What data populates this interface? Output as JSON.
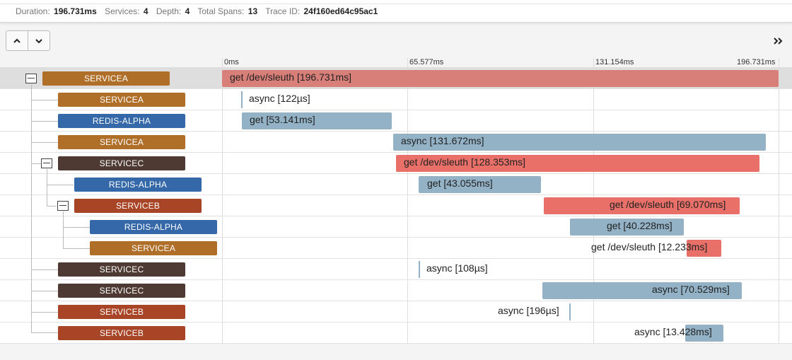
{
  "summary": {
    "duration_label": "Duration:",
    "duration": "196.731ms",
    "services_label": "Services:",
    "services": "4",
    "depth_label": "Depth:",
    "depth": "4",
    "spans_label": "Total Spans:",
    "spans": "13",
    "trace_label": "Trace ID:",
    "trace_id": "24f160ed64c95ac1"
  },
  "toolbar": {
    "up_icon": "chevron-up-icon",
    "down_icon": "chevron-down-icon",
    "expand_icon": "double-chevron-right-icon"
  },
  "timeline": {
    "ticks": [
      "0ms",
      "65.577ms",
      "131.154ms",
      "196.731ms"
    ]
  },
  "colors": {
    "servicea": "#b06f28",
    "redis": "#3468a8",
    "servicec": "#4e3a33",
    "serviceb": "#a84527",
    "error_bar": "#e87068",
    "ok_bar": "#93b2c6"
  },
  "spans": [
    {
      "service": "SERVICEA",
      "label": "get /dev/sleuth [196.731ms]"
    },
    {
      "service": "SERVICEA",
      "label": "async [122µs]"
    },
    {
      "service": "REDIS-ALPHA",
      "label": "get [53.141ms]"
    },
    {
      "service": "SERVICEA",
      "label": "async [131.672ms]"
    },
    {
      "service": "SERVICEC",
      "label": "get /dev/sleuth [128.353ms]"
    },
    {
      "service": "REDIS-ALPHA",
      "label": "get [43.055ms]"
    },
    {
      "service": "SERVICEB",
      "label": "get /dev/sleuth [69.070ms]"
    },
    {
      "service": "REDIS-ALPHA",
      "label": "get [40.228ms]"
    },
    {
      "service": "SERVICEA",
      "label": "get /dev/sleuth [12.233ms]"
    },
    {
      "service": "SERVICEC",
      "label": "async [108µs]"
    },
    {
      "service": "SERVICEC",
      "label": "async [70.529ms]"
    },
    {
      "service": "SERVICEB",
      "label": "async [196µs]"
    },
    {
      "service": "SERVICEB",
      "label": "async [13.428ms]"
    }
  ]
}
